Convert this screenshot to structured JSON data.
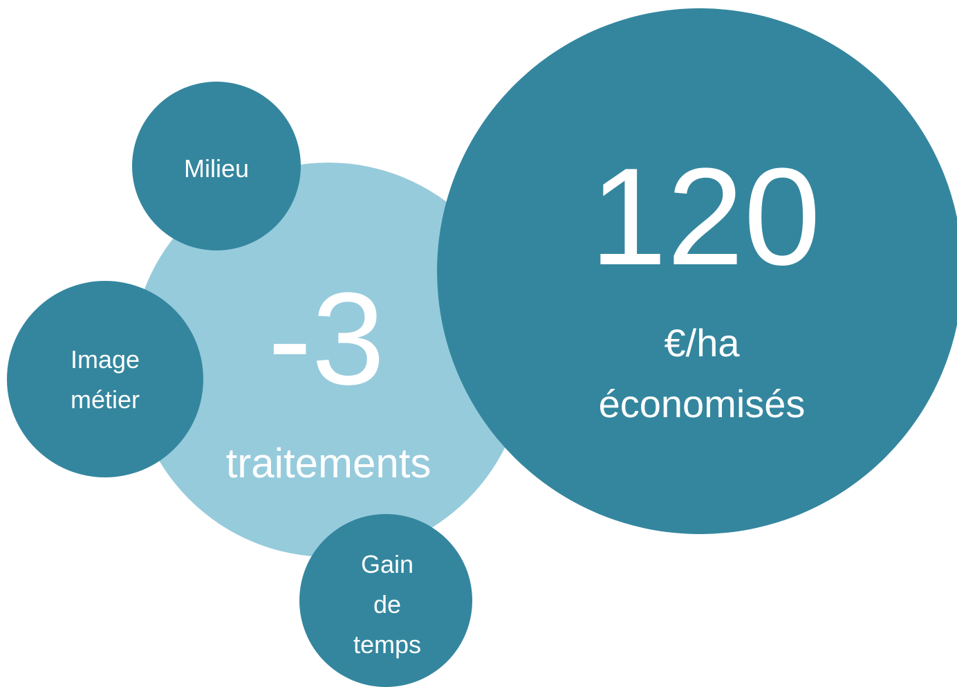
{
  "nodes": [
    {
      "value": "-3",
      "unit": "traitements"
    },
    {
      "value": "120",
      "unit": [
        "€/ha",
        "économisés"
      ]
    },
    {
      "lines": [
        "Milieu"
      ]
    },
    {
      "lines": [
        "Image",
        "métier"
      ]
    },
    {
      "lines": [
        "Gain",
        "de",
        "temps"
      ]
    }
  ]
}
